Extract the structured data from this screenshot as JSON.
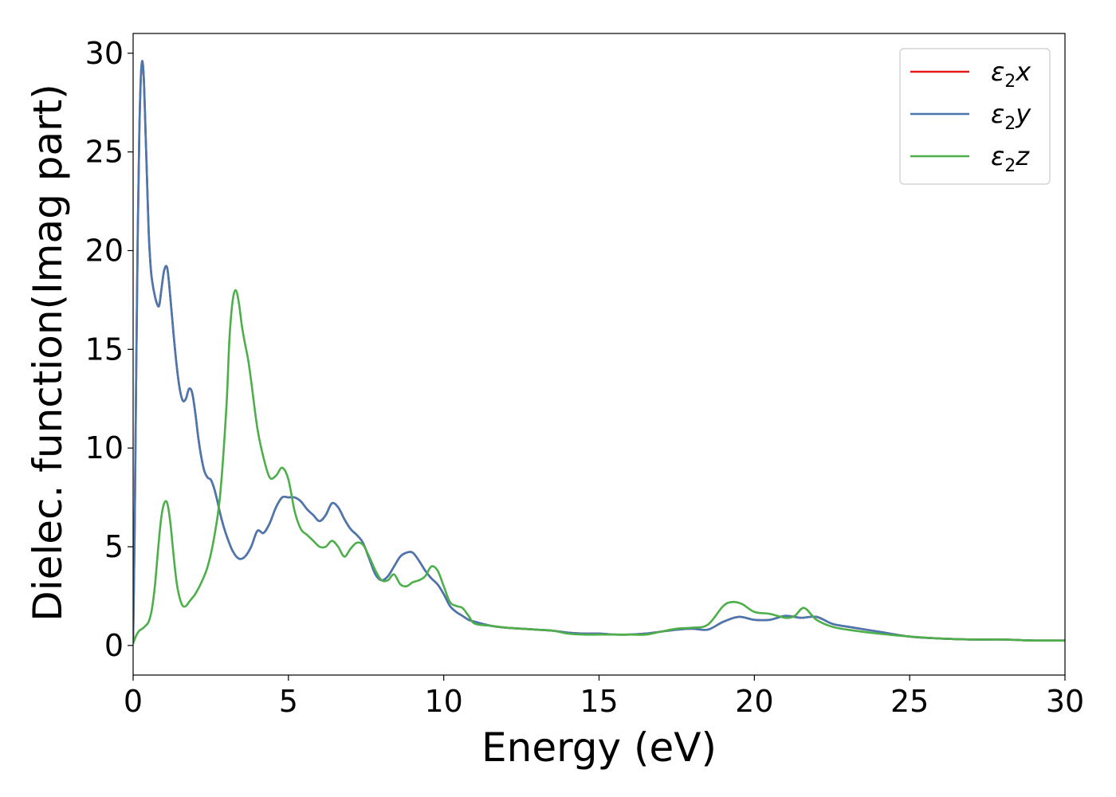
{
  "chart_data": {
    "type": "line",
    "title": "",
    "xlabel": "Energy (eV)",
    "ylabel": "Dielec. function(Imag part)",
    "xlim": [
      0,
      30
    ],
    "ylim": [
      -1.5,
      31
    ],
    "xticks": [
      0,
      5,
      10,
      15,
      20,
      25,
      30
    ],
    "yticks": [
      0,
      5,
      10,
      15,
      20,
      25,
      30
    ],
    "grid": false,
    "legend_position": "top-right",
    "series": [
      {
        "name": "ε₂x",
        "legend_main": "ε",
        "legend_sub": "2",
        "legend_var": "x",
        "color": "#e41a1c",
        "x": [
          0,
          0.05,
          0.1,
          0.15,
          0.2,
          0.25,
          0.3,
          0.35,
          0.4,
          0.45,
          0.5,
          0.55,
          0.6,
          0.7,
          0.8,
          0.85,
          0.9,
          1.0,
          1.1,
          1.2,
          1.3,
          1.4,
          1.5,
          1.6,
          1.7,
          1.8,
          1.9,
          2.0,
          2.1,
          2.2,
          2.3,
          2.4,
          2.5,
          2.6,
          2.7,
          2.8,
          2.9,
          3.0,
          3.2,
          3.4,
          3.6,
          3.8,
          4.0,
          4.2,
          4.4,
          4.6,
          4.8,
          5.0,
          5.2,
          5.4,
          5.6,
          5.8,
          6.0,
          6.2,
          6.4,
          6.6,
          6.8,
          7.0,
          7.2,
          7.4,
          7.6,
          7.8,
          8.0,
          8.2,
          8.4,
          8.6,
          8.8,
          9.0,
          9.2,
          9.4,
          9.6,
          9.8,
          10.0,
          10.2,
          10.4,
          10.6,
          10.8,
          11.0,
          11.5,
          12.0,
          12.5,
          13.0,
          13.5,
          14.0,
          14.5,
          15.0,
          15.5,
          16.0,
          16.5,
          17.0,
          17.5,
          18.0,
          18.5,
          19.0,
          19.5,
          20.0,
          20.5,
          21.0,
          21.5,
          22.0,
          22.5,
          23.0,
          24.0,
          25.0,
          26.0,
          27.0,
          28.0,
          29.0,
          30.0
        ],
        "y": [
          0.3,
          6.0,
          14.0,
          21.0,
          26.0,
          28.8,
          29.6,
          28.5,
          26.0,
          23.5,
          21.0,
          19.5,
          18.6,
          17.7,
          17.2,
          17.3,
          17.9,
          19.0,
          19.1,
          17.6,
          15.8,
          14.2,
          13.0,
          12.4,
          12.5,
          13.0,
          12.8,
          11.8,
          10.5,
          9.5,
          8.8,
          8.5,
          8.4,
          8.0,
          7.4,
          6.7,
          6.1,
          5.6,
          4.8,
          4.4,
          4.5,
          5.0,
          5.8,
          5.7,
          6.2,
          7.0,
          7.5,
          7.5,
          7.5,
          7.3,
          6.9,
          6.6,
          6.3,
          6.6,
          7.2,
          7.0,
          6.4,
          5.9,
          5.6,
          5.2,
          4.4,
          3.6,
          3.3,
          3.5,
          4.0,
          4.5,
          4.7,
          4.7,
          4.3,
          3.8,
          3.4,
          3.1,
          2.6,
          2.0,
          1.7,
          1.5,
          1.3,
          1.2,
          1.0,
          0.9,
          0.85,
          0.8,
          0.75,
          0.65,
          0.6,
          0.6,
          0.55,
          0.55,
          0.6,
          0.7,
          0.8,
          0.85,
          0.8,
          1.2,
          1.45,
          1.3,
          1.3,
          1.5,
          1.4,
          1.45,
          1.1,
          0.95,
          0.7,
          0.45,
          0.35,
          0.3,
          0.3,
          0.25,
          0.25
        ]
      },
      {
        "name": "ε₂y",
        "legend_main": "ε",
        "legend_sub": "2",
        "legend_var": "y",
        "color": "#4878b0",
        "x": [
          0,
          0.05,
          0.1,
          0.15,
          0.2,
          0.25,
          0.3,
          0.35,
          0.4,
          0.45,
          0.5,
          0.55,
          0.6,
          0.7,
          0.8,
          0.85,
          0.9,
          1.0,
          1.1,
          1.2,
          1.3,
          1.4,
          1.5,
          1.6,
          1.7,
          1.8,
          1.9,
          2.0,
          2.1,
          2.2,
          2.3,
          2.4,
          2.5,
          2.6,
          2.7,
          2.8,
          2.9,
          3.0,
          3.2,
          3.4,
          3.6,
          3.8,
          4.0,
          4.2,
          4.4,
          4.6,
          4.8,
          5.0,
          5.2,
          5.4,
          5.6,
          5.8,
          6.0,
          6.2,
          6.4,
          6.6,
          6.8,
          7.0,
          7.2,
          7.4,
          7.6,
          7.8,
          8.0,
          8.2,
          8.4,
          8.6,
          8.8,
          9.0,
          9.2,
          9.4,
          9.6,
          9.8,
          10.0,
          10.2,
          10.4,
          10.6,
          10.8,
          11.0,
          11.5,
          12.0,
          12.5,
          13.0,
          13.5,
          14.0,
          14.5,
          15.0,
          15.5,
          16.0,
          16.5,
          17.0,
          17.5,
          18.0,
          18.5,
          19.0,
          19.5,
          20.0,
          20.5,
          21.0,
          21.5,
          22.0,
          22.5,
          23.0,
          24.0,
          25.0,
          26.0,
          27.0,
          28.0,
          29.0,
          30.0
        ],
        "y": [
          0.3,
          6.0,
          14.0,
          21.0,
          26.0,
          28.8,
          29.6,
          28.5,
          26.0,
          23.5,
          21.0,
          19.5,
          18.6,
          17.7,
          17.2,
          17.3,
          17.9,
          19.0,
          19.1,
          17.6,
          15.8,
          14.2,
          13.0,
          12.4,
          12.5,
          13.0,
          12.8,
          11.8,
          10.5,
          9.5,
          8.8,
          8.5,
          8.4,
          8.0,
          7.4,
          6.7,
          6.1,
          5.6,
          4.8,
          4.4,
          4.5,
          5.0,
          5.8,
          5.7,
          6.2,
          7.0,
          7.5,
          7.5,
          7.5,
          7.3,
          6.9,
          6.6,
          6.3,
          6.6,
          7.2,
          7.0,
          6.4,
          5.9,
          5.6,
          5.2,
          4.4,
          3.6,
          3.3,
          3.5,
          4.0,
          4.5,
          4.7,
          4.7,
          4.3,
          3.8,
          3.4,
          3.1,
          2.6,
          2.0,
          1.7,
          1.5,
          1.3,
          1.2,
          1.0,
          0.9,
          0.85,
          0.8,
          0.75,
          0.65,
          0.6,
          0.6,
          0.55,
          0.55,
          0.6,
          0.7,
          0.8,
          0.85,
          0.8,
          1.2,
          1.45,
          1.3,
          1.3,
          1.5,
          1.4,
          1.45,
          1.1,
          0.95,
          0.7,
          0.45,
          0.35,
          0.3,
          0.3,
          0.25,
          0.25
        ]
      },
      {
        "name": "ε₂z",
        "legend_main": "ε",
        "legend_sub": "2",
        "legend_var": "z",
        "color": "#4daf4a",
        "x": [
          0,
          0.1,
          0.2,
          0.3,
          0.4,
          0.5,
          0.6,
          0.7,
          0.8,
          0.9,
          1.0,
          1.1,
          1.2,
          1.3,
          1.4,
          1.5,
          1.6,
          1.7,
          1.8,
          1.9,
          2.0,
          2.2,
          2.4,
          2.6,
          2.8,
          3.0,
          3.1,
          3.2,
          3.3,
          3.4,
          3.5,
          3.6,
          3.7,
          3.8,
          4.0,
          4.2,
          4.4,
          4.6,
          4.8,
          5.0,
          5.2,
          5.4,
          5.6,
          5.8,
          6.0,
          6.2,
          6.4,
          6.6,
          6.8,
          7.0,
          7.2,
          7.4,
          7.6,
          7.8,
          8.0,
          8.2,
          8.4,
          8.6,
          8.8,
          9.0,
          9.2,
          9.4,
          9.6,
          9.8,
          10.0,
          10.2,
          10.4,
          10.6,
          10.8,
          11.0,
          11.5,
          12.0,
          12.5,
          13.0,
          13.5,
          14.0,
          14.5,
          15.0,
          15.5,
          16.0,
          16.5,
          17.0,
          17.5,
          18.0,
          18.5,
          19.0,
          19.3,
          19.6,
          20.0,
          20.5,
          21.0,
          21.3,
          21.6,
          22.0,
          22.5,
          23.0,
          24.0,
          25.0,
          26.0,
          27.0,
          28.0,
          29.0,
          30.0
        ],
        "y": [
          0.1,
          0.5,
          0.75,
          0.85,
          1.0,
          1.2,
          1.8,
          3.0,
          4.8,
          6.4,
          7.2,
          7.2,
          6.2,
          4.6,
          3.2,
          2.4,
          2.0,
          2.0,
          2.2,
          2.4,
          2.6,
          3.2,
          4.0,
          5.4,
          7.6,
          12.0,
          15.5,
          17.4,
          18.0,
          17.4,
          16.2,
          15.3,
          14.5,
          13.4,
          11.0,
          9.5,
          8.5,
          8.6,
          9.0,
          8.4,
          6.8,
          5.9,
          5.6,
          5.3,
          5.0,
          5.0,
          5.3,
          5.0,
          4.5,
          4.9,
          5.2,
          5.1,
          4.5,
          3.8,
          3.3,
          3.3,
          3.6,
          3.1,
          3.0,
          3.2,
          3.3,
          3.5,
          4.0,
          3.8,
          3.0,
          2.2,
          2.0,
          1.9,
          1.5,
          1.1,
          1.0,
          0.9,
          0.85,
          0.8,
          0.75,
          0.6,
          0.55,
          0.55,
          0.55,
          0.55,
          0.55,
          0.7,
          0.85,
          0.9,
          1.05,
          2.0,
          2.2,
          2.1,
          1.7,
          1.6,
          1.4,
          1.5,
          1.9,
          1.3,
          0.95,
          0.8,
          0.6,
          0.45,
          0.35,
          0.3,
          0.3,
          0.25,
          0.25
        ]
      }
    ]
  }
}
